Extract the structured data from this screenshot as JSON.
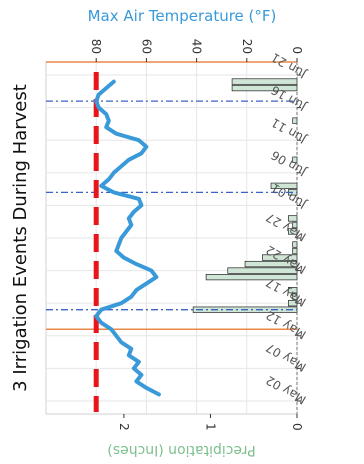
{
  "chart_data": {
    "type": "line",
    "orientation": "rotated-90-clockwise",
    "title": "3 Irrigation Events During Harvest",
    "temp_axis": {
      "label": "Max Air Temperature (°F)",
      "ticks": [
        0,
        20,
        40,
        60,
        80
      ],
      "tick_labels": [
        "0",
        "20",
        "40",
        "60",
        "80"
      ],
      "range": [
        0,
        100
      ],
      "color": "#3a9ad9"
    },
    "precip_axis": {
      "label": "Precipitation (Inches)",
      "ticks": [
        0,
        1,
        2
      ],
      "tick_labels": [
        "0",
        "1",
        "2"
      ],
      "range": [
        0,
        2.9
      ],
      "color": "#7dbf8e"
    },
    "date_axis": {
      "ticks": [
        "2023-05-02",
        "2023-05-07",
        "2023-05-12",
        "2023-05-17",
        "2023-05-22",
        "2023-05-27",
        "2023-06-01",
        "2023-06-06",
        "2023-06-11",
        "2023-06-16",
        "2023-06-21"
      ],
      "tick_labels": [
        "May 02",
        "May 07",
        "May 12",
        "May 17",
        "May 22",
        "May 27",
        "Jun 01",
        "Jun 06",
        "Jun 11",
        "Jun 16",
        "Jun 21"
      ],
      "range": [
        "2023-04-30",
        "2023-06-23"
      ]
    },
    "harvest_window": {
      "start": "2023-05-13",
      "end": "2023-06-23",
      "color": "#e8884a"
    },
    "irrigation_events": {
      "dates": [
        "2023-05-16",
        "2023-06-03",
        "2023-06-17"
      ],
      "color": "#3a62c8"
    },
    "reference_line": {
      "temperature_f": 80,
      "color": "#e8151b"
    },
    "series": [
      {
        "kind": "temperature",
        "color": "#3a9ad9",
        "dates": [
          "2023-05-03",
          "2023-05-04",
          "2023-05-05",
          "2023-05-06",
          "2023-05-07",
          "2023-05-08",
          "2023-05-09",
          "2023-05-10",
          "2023-05-11",
          "2023-05-12",
          "2023-05-13",
          "2023-05-14",
          "2023-05-15",
          "2023-05-16",
          "2023-05-17",
          "2023-05-18",
          "2023-05-19",
          "2023-05-20",
          "2023-05-21",
          "2023-05-22",
          "2023-05-23",
          "2023-05-24",
          "2023-05-25",
          "2023-05-26",
          "2023-05-27",
          "2023-05-28",
          "2023-05-29",
          "2023-05-30",
          "2023-05-31",
          "2023-06-01",
          "2023-06-02",
          "2023-06-03",
          "2023-06-04",
          "2023-06-05",
          "2023-06-06",
          "2023-06-07",
          "2023-06-08",
          "2023-06-09",
          "2023-06-10",
          "2023-06-11",
          "2023-06-12",
          "2023-06-13",
          "2023-06-14",
          "2023-06-15",
          "2023-06-16",
          "2023-06-17",
          "2023-06-18",
          "2023-06-19",
          "2023-06-20"
        ],
        "values": [
          55,
          60,
          64,
          62,
          65,
          63,
          67,
          66,
          70,
          72,
          74,
          78,
          80,
          78,
          70,
          66,
          64,
          60,
          56,
          58,
          64,
          69,
          72,
          71,
          70,
          68,
          66,
          67,
          65,
          62,
          63,
          73,
          78,
          75,
          73,
          70,
          67,
          62,
          60,
          63,
          72,
          76,
          75,
          76,
          79,
          80,
          79,
          76,
          73
        ]
      },
      {
        "kind": "precipitation",
        "color": "#7dbf8e",
        "dates": [
          "2023-05-16",
          "2023-05-17",
          "2023-05-18",
          "2023-05-19",
          "2023-05-21",
          "2023-05-22",
          "2023-05-23",
          "2023-05-24",
          "2023-05-25",
          "2023-05-26",
          "2023-05-28",
          "2023-05-29",
          "2023-05-30",
          "2023-06-03",
          "2023-06-04",
          "2023-06-08",
          "2023-06-14",
          "2023-06-19",
          "2023-06-20"
        ],
        "values": [
          1.2,
          0.1,
          0.05,
          0.1,
          1.05,
          0.8,
          0.6,
          0.4,
          0.05,
          0.05,
          0.1,
          0.05,
          0.1,
          0.1,
          0.3,
          0.05,
          0.05,
          0.75,
          0.75
        ]
      }
    ]
  }
}
